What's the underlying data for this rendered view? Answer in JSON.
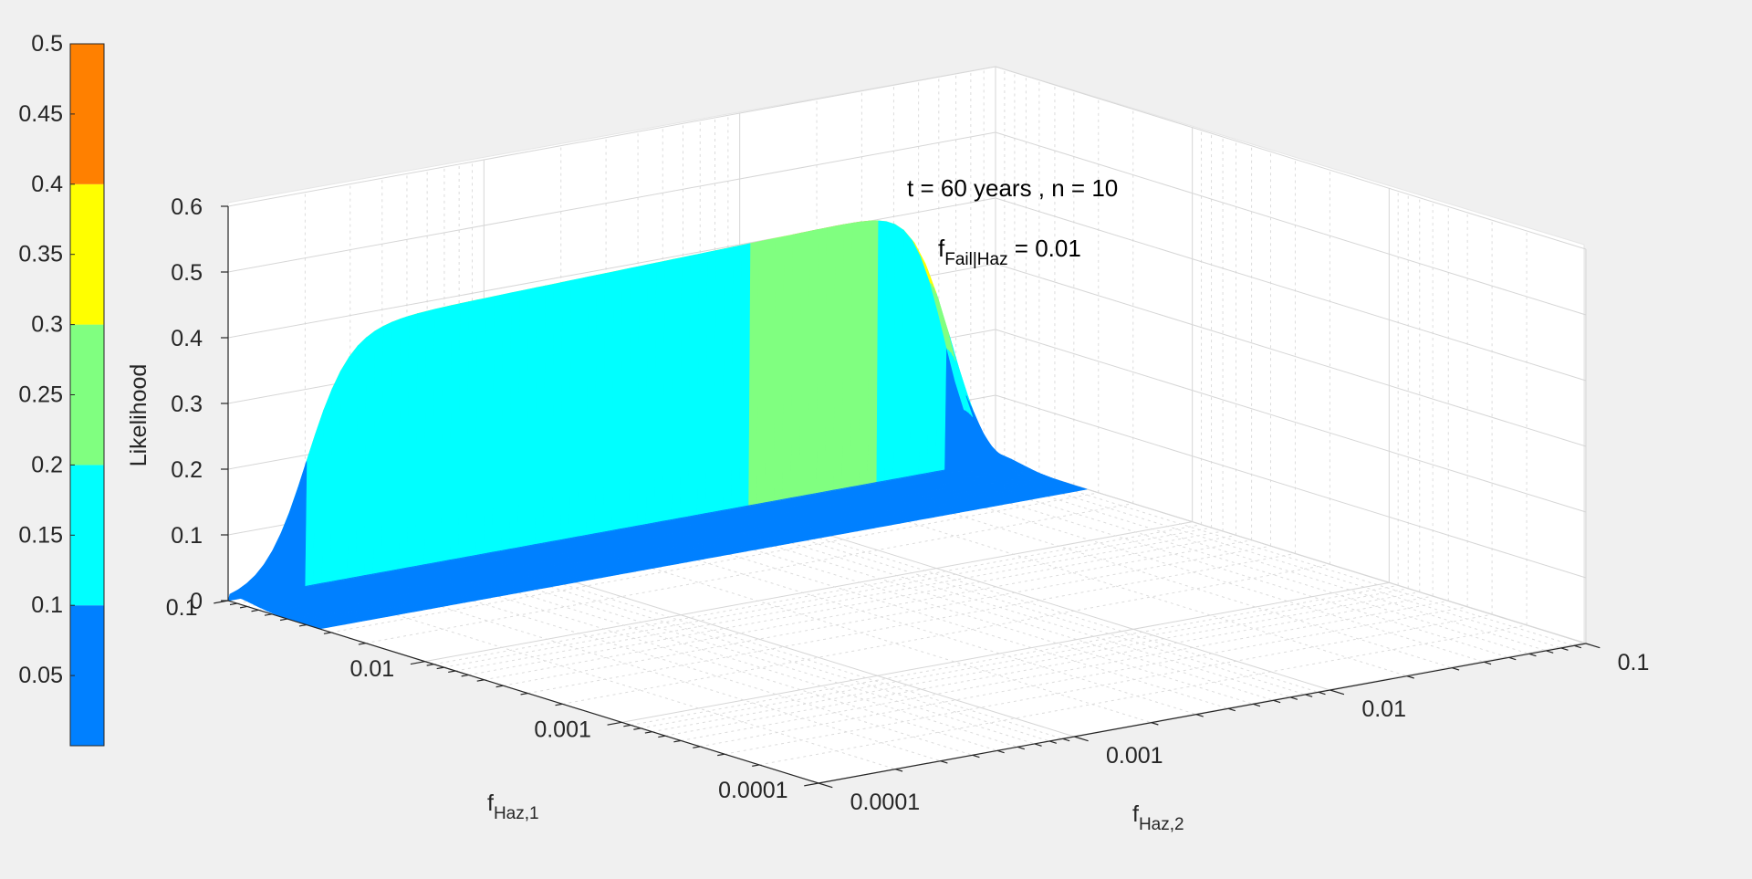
{
  "chart_data": {
    "type": "surface",
    "title": "",
    "annotations": [
      {
        "text": "t = 60 years , n = 10"
      },
      {
        "text_main": "f",
        "text_sub": "Fail|Haz",
        "text_tail": " = 0.01"
      }
    ],
    "zlabel": "Likelihood",
    "xlabel": {
      "main": "f",
      "sub": "Haz,1"
    },
    "ylabel": {
      "main": "f",
      "sub": "Haz,2"
    },
    "x_scale": "log",
    "y_scale": "log",
    "xlim": [
      0.0001,
      0.1
    ],
    "ylim": [
      0.0001,
      0.1
    ],
    "zlim": [
      0,
      0.6
    ],
    "x_ticks": [
      "0.1",
      "0.01",
      "0.001",
      "0.0001"
    ],
    "y_ticks": [
      "0.0001",
      "0.001",
      "0.01",
      "0.1"
    ],
    "z_ticks": [
      "0",
      "0.1",
      "0.2",
      "0.3",
      "0.4",
      "0.5",
      "0.6"
    ],
    "grid": true,
    "surface_peak": 0.41,
    "colorbar": {
      "location": "left",
      "ticks": [
        "0.05",
        "0.1",
        "0.15",
        "0.2",
        "0.25",
        "0.3",
        "0.35",
        "0.4",
        "0.45",
        "0.5"
      ],
      "range": [
        0.0,
        0.5
      ],
      "bands": [
        {
          "from": 0.0,
          "to": 0.1,
          "color": "#0080ff"
        },
        {
          "from": 0.1,
          "to": 0.2,
          "color": "#00ffff"
        },
        {
          "from": 0.2,
          "to": 0.3,
          "color": "#80ff80"
        },
        {
          "from": 0.3,
          "to": 0.4,
          "color": "#ffff00"
        },
        {
          "from": 0.4,
          "to": 0.5,
          "color": "#ff8000"
        }
      ]
    }
  }
}
